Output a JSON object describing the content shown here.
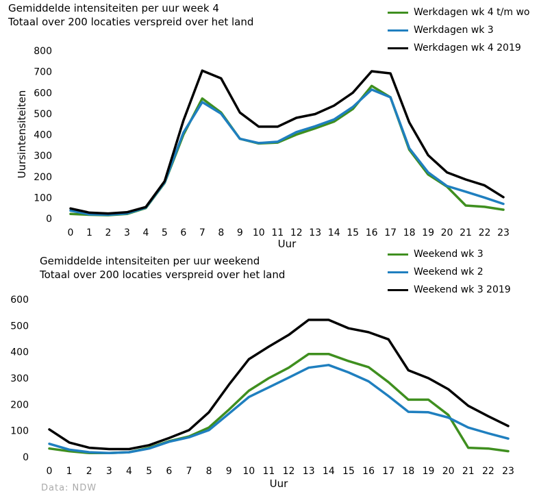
{
  "chart_data": [
    {
      "type": "line",
      "title": "Gemiddelde intensiteiten per uur week 4",
      "subtitle": "Totaal over 200 locaties verspreid over het land",
      "xlabel": "Uur",
      "ylabel": "Uursintensiteiten",
      "ylim": [
        0,
        800
      ],
      "yticks": [
        0,
        100,
        200,
        300,
        400,
        500,
        600,
        700,
        800
      ],
      "x": [
        0,
        1,
        2,
        3,
        4,
        5,
        6,
        7,
        8,
        9,
        10,
        11,
        12,
        13,
        14,
        15,
        16,
        17,
        18,
        19,
        20,
        21,
        22,
        23
      ],
      "legend_position": "top-right",
      "grid": false,
      "series": [
        {
          "name": "Werkdagen wk 4 t/m wo",
          "color": "#3f8f1f",
          "values": [
            22,
            18,
            16,
            22,
            50,
            170,
            400,
            572,
            505,
            380,
            358,
            362,
            400,
            430,
            462,
            522,
            632,
            578,
            328,
            210,
            152,
            62,
            56,
            42
          ]
        },
        {
          "name": "Werkdagen wk 3",
          "color": "#1f7fbf",
          "values": [
            38,
            20,
            18,
            24,
            52,
            172,
            410,
            555,
            500,
            380,
            360,
            366,
            412,
            440,
            472,
            532,
            615,
            578,
            335,
            220,
            155,
            128,
            100,
            70
          ]
        },
        {
          "name": "Werkdagen wk 4 2019",
          "color": "#000000",
          "values": [
            48,
            28,
            24,
            30,
            55,
            178,
            468,
            705,
            668,
            505,
            438,
            438,
            480,
            498,
            538,
            600,
            702,
            692,
            458,
            302,
            220,
            186,
            158,
            102
          ]
        }
      ]
    },
    {
      "type": "line",
      "title": "Gemiddelde intensiteiten per uur weekend",
      "subtitle": "Totaal over 200 locaties verspreid over het land",
      "xlabel": "Uur",
      "ylabel": "",
      "ylim": [
        0,
        600
      ],
      "yticks": [
        0,
        100,
        200,
        300,
        400,
        500,
        600
      ],
      "x": [
        0,
        1,
        2,
        3,
        4,
        5,
        6,
        7,
        8,
        9,
        10,
        11,
        12,
        13,
        14,
        15,
        16,
        17,
        18,
        19,
        20,
        21,
        22,
        23
      ],
      "legend_position": "top-right",
      "grid": false,
      "series": [
        {
          "name": "Weekend wk 3",
          "color": "#3f8f1f",
          "values": [
            32,
            22,
            15,
            15,
            18,
            35,
            60,
            78,
            112,
            180,
            252,
            300,
            340,
            392,
            392,
            365,
            342,
            285,
            218,
            218,
            160,
            35,
            32,
            22
          ]
        },
        {
          "name": "Weekend wk 2",
          "color": "#1f7fbf",
          "values": [
            50,
            28,
            18,
            15,
            18,
            32,
            58,
            75,
            102,
            165,
            228,
            265,
            302,
            340,
            350,
            322,
            288,
            232,
            172,
            170,
            150,
            112,
            90,
            70
          ]
        },
        {
          "name": "Weekend wk 3 2019",
          "color": "#000000",
          "values": [
            105,
            55,
            35,
            30,
            30,
            45,
            72,
            102,
            170,
            275,
            372,
            420,
            465,
            522,
            522,
            490,
            475,
            448,
            330,
            300,
            258,
            195,
            155,
            118
          ]
        }
      ]
    }
  ],
  "source": "Data: NDW"
}
